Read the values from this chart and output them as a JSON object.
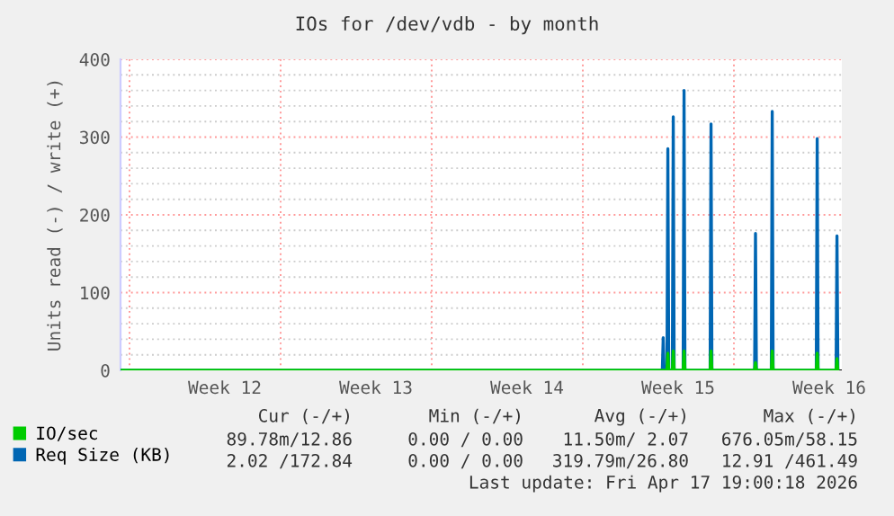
{
  "chart_data": {
    "type": "line",
    "title": "IOs for /dev/vdb - by month",
    "ylabel": "Units read (-) / write (+)",
    "xlim": [
      "2026-03-15T14:00",
      "2026-04-18T00:00"
    ],
    "ylim": [
      0,
      400
    ],
    "xticks": [
      {
        "value": "2026-03-16T00:00",
        "label": null
      },
      {
        "value": "2026-03-20T10:00",
        "label": "Week 12"
      },
      {
        "value": "2026-03-23T00:00",
        "label": null
      },
      {
        "value": "2026-03-27T10:00",
        "label": "Week 13"
      },
      {
        "value": "2026-03-30T00:00",
        "label": null
      },
      {
        "value": "2026-04-03T10:00",
        "label": "Week 14"
      },
      {
        "value": "2026-04-06T00:00",
        "label": null
      },
      {
        "value": "2026-04-10T10:00",
        "label": "Week 15"
      },
      {
        "value": "2026-04-13T00:00",
        "label": null
      },
      {
        "value": "2026-04-17T10:00",
        "label": "Week 16"
      }
    ],
    "yticks": [
      0,
      {
        "value": 20,
        "label": null
      },
      {
        "value": 40,
        "label": null
      },
      {
        "value": 60,
        "label": null
      },
      {
        "value": 80,
        "label": null
      },
      100,
      {
        "value": 120,
        "label": null
      },
      {
        "value": 140,
        "label": null
      },
      {
        "value": 160,
        "label": null
      },
      {
        "value": 180,
        "label": null
      },
      200,
      {
        "value": 220,
        "label": null
      },
      {
        "value": 240,
        "label": null
      },
      {
        "value": 260,
        "label": null
      },
      {
        "value": 280,
        "label": null
      },
      300,
      {
        "value": 320,
        "label": null
      },
      {
        "value": 340,
        "label": null
      },
      {
        "value": 360,
        "label": null
      },
      {
        "value": 380,
        "label": null
      },
      400
    ],
    "grid": true,
    "legend": "bottom left",
    "marker": "none",
    "line_style": "solid",
    "series": [
      {
        "name": "IO/sec",
        "color": "#00cc00",
        "x": [
          "2026-03-15T14:00",
          "2026-04-09T21:34",
          "2026-04-09T22:34",
          "2026-04-09T23:34",
          "2026-04-10T03:34",
          "2026-04-10T04:34",
          "2026-04-10T05:34",
          "2026-04-10T15:34",
          "2026-04-10T16:34",
          "2026-04-10T17:34",
          "2026-04-11T21:34",
          "2026-04-11T22:34",
          "2026-04-11T23:34",
          "2026-04-13T23:00",
          "2026-04-14T00:00",
          "2026-04-14T01:00",
          "2026-04-14T17:36",
          "2026-04-14T18:36",
          "2026-04-14T19:36",
          "2026-04-16T19:36",
          "2026-04-16T20:36",
          "2026-04-16T21:36",
          "2026-04-17T17:36",
          "2026-04-17T18:36",
          "2026-04-17T19:36"
        ],
        "values": [
          0,
          0,
          22,
          0,
          0,
          25,
          0,
          0,
          25,
          0,
          0,
          25,
          0,
          0,
          10,
          0,
          0,
          25,
          0,
          0,
          22,
          0,
          0,
          15,
          0
        ]
      },
      {
        "name": "Req Size (KB)",
        "color": "#0066b3",
        "x": [
          "2026-03-15T14:00",
          "2026-04-09T16:24",
          "2026-04-09T17:24",
          "2026-04-09T18:24",
          "2026-04-09T21:34",
          "2026-04-09T22:34",
          "2026-04-09T23:34",
          "2026-04-10T03:34",
          "2026-04-10T04:34",
          "2026-04-10T05:34",
          "2026-04-10T15:34",
          "2026-04-10T16:34",
          "2026-04-10T17:34",
          "2026-04-11T21:34",
          "2026-04-11T22:34",
          "2026-04-11T23:34",
          "2026-04-13T23:00",
          "2026-04-14T00:00",
          "2026-04-14T01:00",
          "2026-04-14T17:36",
          "2026-04-14T18:36",
          "2026-04-14T19:36",
          "2026-04-16T19:36",
          "2026-04-16T20:36",
          "2026-04-16T21:36",
          "2026-04-17T17:36",
          "2026-04-17T18:36",
          "2026-04-17T19:36"
        ],
        "values": [
          0,
          0,
          42,
          0,
          0,
          285,
          0,
          0,
          326,
          0,
          0,
          360,
          0,
          0,
          317,
          0,
          0,
          176,
          0,
          0,
          333,
          0,
          0,
          298,
          0,
          0,
          173,
          0
        ]
      }
    ],
    "annotations": [
      "Cur (-/+)",
      "Min (-/+)",
      "Avg (-/+)",
      "Max (-/+)",
      "89.78m/12.86",
      "0.00 / 0.00",
      "11.50m/ 2.07",
      "676.05m/58.15",
      "2.02 /172.84",
      "0.00 / 0.00",
      "319.79m/26.80",
      "12.91 /461.49",
      "Last update: Fri Apr 17 19:00:18 2026"
    ]
  }
}
